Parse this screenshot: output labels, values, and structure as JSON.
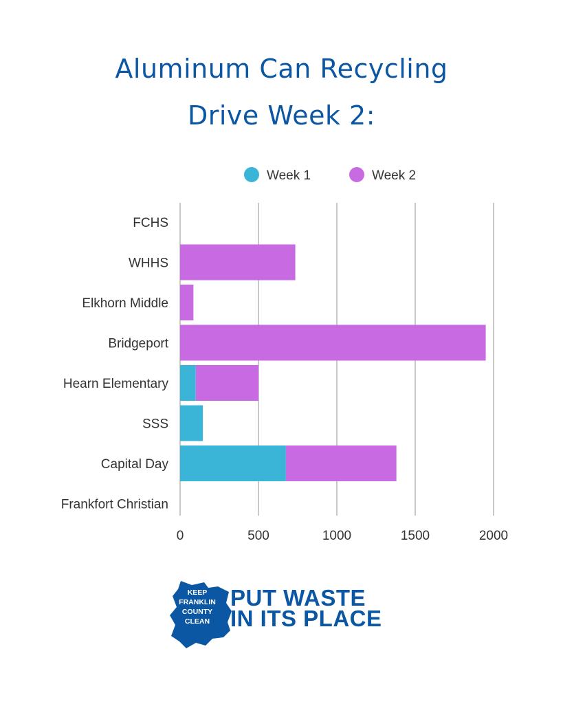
{
  "title_line1": "Aluminum Can Recycling",
  "title_line2": "Drive  Week 2:",
  "chart_data": {
    "type": "bar",
    "orientation": "horizontal",
    "stacked": true,
    "categories": [
      "FCHS",
      "WHHS",
      "Elkhorn Middle",
      "Bridgeport",
      "Hearn Elementary",
      "SSS",
      "Capital Day",
      "Frankfort Christian"
    ],
    "series": [
      {
        "name": "Week 1",
        "color": "#3ab5d8",
        "values": [
          0,
          0,
          0,
          0,
          100,
          145,
          675,
          0
        ]
      },
      {
        "name": "Week 2",
        "color": "#c86ae2",
        "values": [
          0,
          735,
          85,
          1950,
          400,
          0,
          705,
          0
        ]
      }
    ],
    "xlim": [
      0,
      2000
    ],
    "xticks": [
      "0",
      "500",
      "1000",
      "1500",
      "2000"
    ],
    "grid": true,
    "legend": "top"
  },
  "logo": {
    "text_lines": [
      "KEEP",
      "FRANKLIN",
      "COUNTY",
      "CLEAN"
    ],
    "color": "#0b57a4"
  },
  "slogan_line1": "PUT WASTE",
  "slogan_line2": "IN ITS PLACE"
}
